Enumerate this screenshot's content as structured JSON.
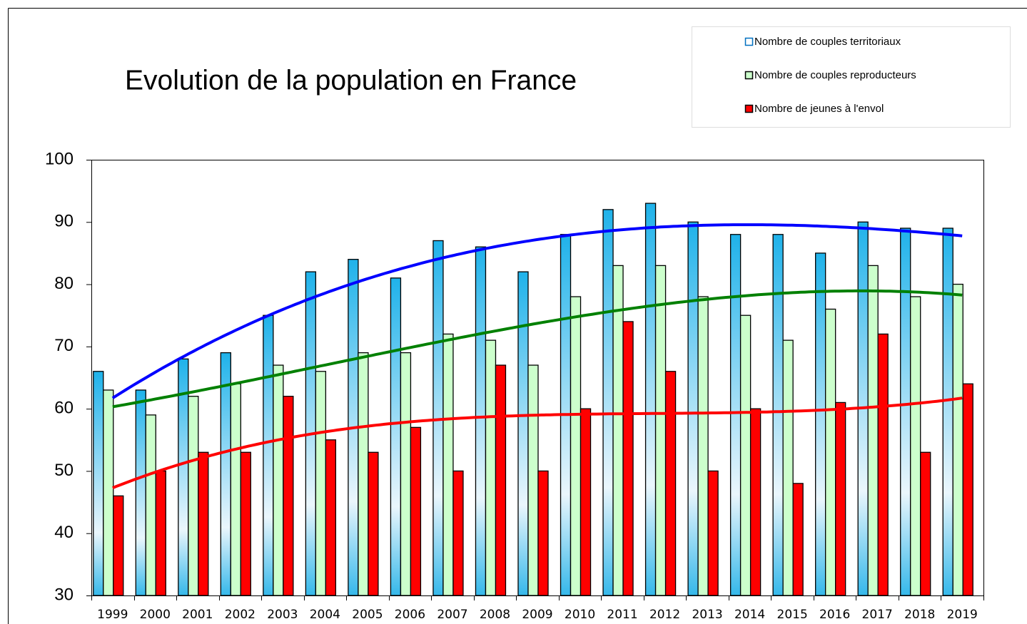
{
  "chart_data": {
    "type": "bar",
    "title": "Evolution de la population en France",
    "categories": [
      "1999",
      "2000",
      "2001",
      "2002",
      "2003",
      "2004",
      "2005",
      "2006",
      "2007",
      "2008",
      "2009",
      "2010",
      "2011",
      "2012",
      "2013",
      "2014",
      "2015",
      "2016",
      "2017",
      "2018",
      "2019"
    ],
    "series": [
      {
        "name": "Nombre de couples territoriaux",
        "color": "#29b6ea",
        "trendline_color": "#0000ff",
        "values": [
          66,
          63,
          68,
          69,
          75,
          82,
          84,
          81,
          87,
          86,
          82,
          88,
          92,
          93,
          90,
          88,
          88,
          85,
          90,
          89,
          89
        ]
      },
      {
        "name": "Nombre de couples reproducteurs",
        "color": "#ccffcc",
        "trendline_color": "#008000",
        "values": [
          63,
          59,
          62,
          64,
          67,
          66,
          69,
          69,
          72,
          71,
          67,
          78,
          83,
          83,
          78,
          75,
          71,
          76,
          83,
          78,
          80
        ]
      },
      {
        "name": "Nombre de jeunes à l'envol",
        "color": "#ff0000",
        "trendline_color": "#ff0000",
        "values": [
          46,
          50,
          53,
          53,
          62,
          55,
          53,
          57,
          50,
          67,
          50,
          60,
          74,
          66,
          50,
          60,
          48,
          61,
          72,
          53,
          64
        ]
      }
    ],
    "ylim": [
      30,
      100
    ],
    "yticks": [
      30,
      40,
      50,
      60,
      70,
      80,
      90,
      100
    ],
    "legend": "top-right"
  }
}
